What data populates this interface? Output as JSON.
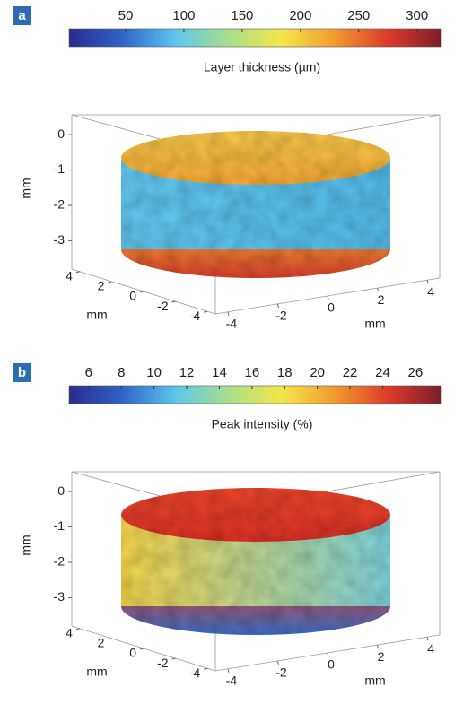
{
  "chart_data": [
    {
      "type": "surface3d",
      "panel_label": "a",
      "colorbar_label": "Layer thickness (µm)",
      "clim": [
        1.5,
        321
      ],
      "cticks": [
        50,
        100,
        150,
        200,
        250,
        300
      ],
      "colormap": [
        "#2a2b8c",
        "#2f63c8",
        "#5ec6ee",
        "#a8df8a",
        "#f4e64a",
        "#f29a30",
        "#dc3a2a",
        "#7b1f2b"
      ],
      "zlabel": "mm",
      "ylabel": "mm",
      "xlabel": "mm",
      "zlim": [
        -3.8,
        0.56
      ],
      "zticks": [
        0,
        -1,
        -2,
        -3
      ],
      "ylim": [
        -4.5,
        4.5
      ],
      "yticks": [
        4,
        2,
        0,
        -2,
        -4
      ],
      "xlim": [
        -4.5,
        4.5
      ],
      "xticks": [
        -4,
        -2,
        0,
        2,
        4
      ]
    },
    {
      "type": "surface3d",
      "panel_label": "b",
      "colorbar_label": "Peak intensity (%)",
      "clim": [
        4.8,
        27.6
      ],
      "cticks": [
        6,
        8,
        10,
        12,
        14,
        16,
        18,
        20,
        22,
        24,
        26
      ],
      "colormap": [
        "#2a2b8c",
        "#2f63c8",
        "#5ec6ee",
        "#a8df8a",
        "#f4e64a",
        "#f29a30",
        "#dc3a2a",
        "#7b1f2b"
      ],
      "zlabel": "mm",
      "ylabel": "mm",
      "xlabel": "mm",
      "zlim": [
        -3.8,
        0.56
      ],
      "zticks": [
        0,
        -1,
        -2,
        -3
      ],
      "ylim": [
        -4.5,
        4.5
      ],
      "yticks": [
        4,
        2,
        0,
        -2,
        -4
      ],
      "xlim": [
        -4.5,
        4.5
      ],
      "xticks": [
        -4,
        -2,
        0,
        2,
        4
      ]
    }
  ]
}
